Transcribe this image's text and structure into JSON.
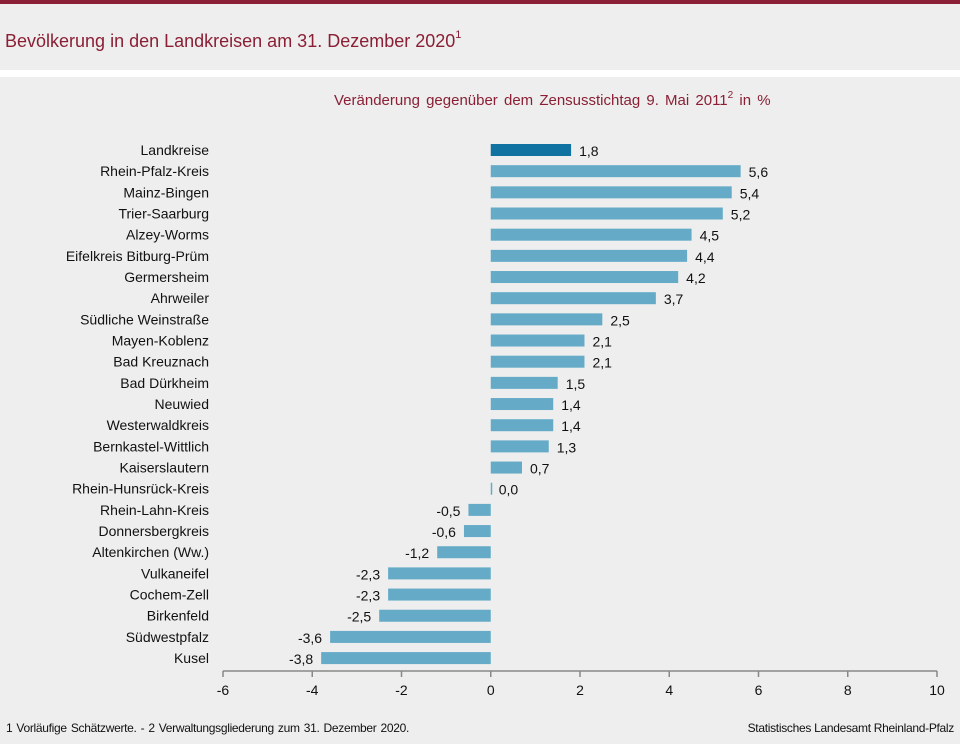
{
  "header": {
    "title": "Bevölkerung in den Landkreisen am 31. Dezember 2020",
    "title_sup": "1",
    "accent_color": "#8a1f35"
  },
  "footer": {
    "footnote": "1 Vorläufige  Schätzwerte. - 2 Verwaltungsgliederung  zum 31. Dezember  2020.",
    "source": "Statistisches Landesamt  Rheinland-Pfalz"
  },
  "chart_data": {
    "type": "bar",
    "orientation": "horizontal",
    "title": "Veränderung gegenüber dem Zensusstichtag 9. Mai 2011",
    "title_sup": "2",
    "title_suffix": " in %",
    "xlabel": "",
    "ylabel": "",
    "xlim": [
      -6,
      10
    ],
    "xticks": [
      -6,
      -4,
      -2,
      0,
      2,
      4,
      6,
      8,
      10
    ],
    "xtick_labels": [
      "-6",
      "-4",
      "-2",
      "0",
      "2",
      "4",
      "6",
      "8",
      "10"
    ],
    "grid": false,
    "legend": "none",
    "colors": {
      "total": "#0f72a0",
      "district": "#65abc8"
    },
    "categories": [
      "Landkreise",
      "Rhein-Pfalz-Kreis",
      "Mainz-Bingen",
      "Trier-Saarburg",
      "Alzey-Worms",
      "Eifelkreis Bitburg-Prüm",
      "Germersheim",
      "Ahrweiler",
      "Südliche Weinstraße",
      "Mayen-Koblenz",
      "Bad Kreuznach",
      "Bad Dürkheim",
      "Neuwied",
      "Westerwaldkreis",
      "Bernkastel-Wittlich",
      "Kaiserslautern",
      "Rhein-Hunsrück-Kreis",
      "Rhein-Lahn-Kreis",
      "Donnersbergkreis",
      "Altenkirchen (Ww.)",
      "Vulkaneifel",
      "Cochem-Zell",
      "Birkenfeld",
      "Südwestpfalz",
      "Kusel"
    ],
    "values": [
      1.8,
      5.6,
      5.4,
      5.2,
      4.5,
      4.4,
      4.2,
      3.7,
      2.5,
      2.1,
      2.1,
      1.5,
      1.4,
      1.4,
      1.3,
      0.7,
      0.0,
      -0.5,
      -0.6,
      -1.2,
      -2.3,
      -2.3,
      -2.5,
      -3.6,
      -3.8
    ],
    "value_labels": [
      "1,8",
      "5,6",
      "5,4",
      "5,2",
      "4,5",
      "4,4",
      "4,2",
      "3,7",
      "2,5",
      "2,1",
      "2,1",
      "1,5",
      "1,4",
      "1,4",
      "1,3",
      "0,7",
      "0,0",
      "-0,5",
      "-0,6",
      "-1,2",
      "-2,3",
      "-2,3",
      "-2,5",
      "-3,6",
      "-3,8"
    ],
    "highlight": [
      "total",
      "district",
      "district",
      "district",
      "district",
      "district",
      "district",
      "district",
      "district",
      "district",
      "district",
      "district",
      "district",
      "district",
      "district",
      "district",
      "district",
      "district",
      "district",
      "district",
      "district",
      "district",
      "district",
      "district",
      "district"
    ]
  }
}
